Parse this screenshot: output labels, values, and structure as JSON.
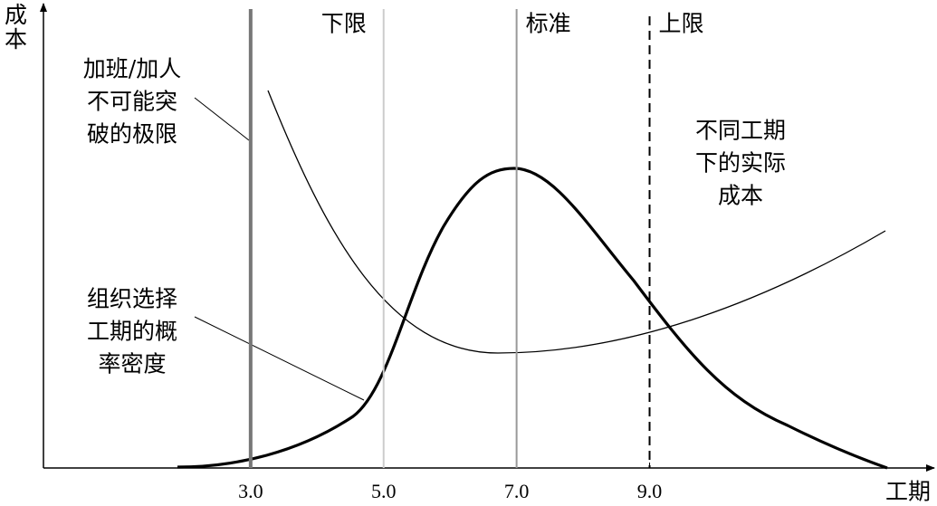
{
  "chart_data": {
    "type": "line",
    "y_label": "成本",
    "x_label": "工期",
    "xlim": [
      0,
      13.2
    ],
    "xticks": [
      {
        "value": 3,
        "label": "3.0"
      },
      {
        "value": 5,
        "label": "5.0"
      },
      {
        "value": 7,
        "label": "7.0"
      },
      {
        "value": 9,
        "label": "9.0"
      }
    ],
    "reference_lines": [
      {
        "x": 5,
        "label": "下限"
      },
      {
        "x": 7,
        "label": "标准"
      },
      {
        "x": 9,
        "label": "上限"
      }
    ],
    "annotations": [
      {
        "lines": [
          "加班/加人",
          "不可能突",
          "破的极限"
        ]
      },
      {
        "lines": [
          "组织选择",
          "工期的概",
          "率密度"
        ]
      },
      {
        "lines": [
          "不同工期",
          "下的实际",
          "成本"
        ]
      }
    ]
  }
}
